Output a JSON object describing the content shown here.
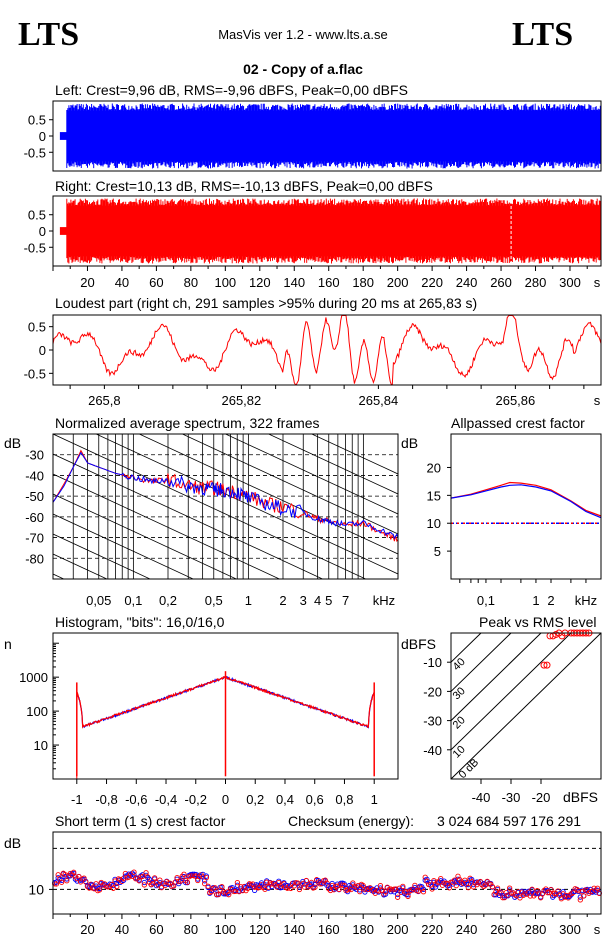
{
  "header": {
    "logo_left": "LTS",
    "logo_right": "LTS",
    "app_title": "MasVis ver 1.2 - www.lts.a.se",
    "file_title": "02 - Copy of a.flac"
  },
  "colors": {
    "left_channel": "#0000ff",
    "right_channel": "#ff0000",
    "axis": "#000000"
  },
  "chart_data": [
    {
      "id": "left",
      "type": "area",
      "title": "Left: Crest=9,96 dB, RMS=-9,96 dBFS, Peak=0,00 dBFS",
      "yticks": [
        "0.5",
        "0",
        "-0.5"
      ],
      "ylim": [
        -1,
        1
      ],
      "xlim": [
        0,
        318
      ],
      "xlabel": "s",
      "envelope": {
        "start_s": 4,
        "intro_end_s": 8,
        "intro_amp": 0.12,
        "body_amp": 1.0
      }
    },
    {
      "id": "right",
      "type": "area",
      "title": "Right: Crest=10,13 dB, RMS=-10,13 dBFS, Peak=0,00 dBFS",
      "yticks": [
        "0.5",
        "0",
        "-0.5"
      ],
      "ylim": [
        -1,
        1
      ],
      "xlim": [
        0,
        318
      ],
      "xticks": [
        "20",
        "40",
        "60",
        "80",
        "100",
        "120",
        "140",
        "160",
        "180",
        "200",
        "220",
        "240",
        "260",
        "280",
        "300"
      ],
      "xlabel": "s",
      "marker_s": 265.83,
      "envelope": {
        "start_s": 4,
        "intro_end_s": 8,
        "intro_amp": 0.12,
        "body_amp": 1.0
      }
    },
    {
      "id": "loudest",
      "type": "line",
      "title": "Loudest part (right ch, 291 samples >95% during 20 ms at 265,83 s)",
      "yticks": [
        "0.5",
        "0",
        "-0.5"
      ],
      "ylim": [
        -0.75,
        0.75
      ],
      "xlim": [
        265.7925,
        265.8725
      ],
      "xticks": [
        "265,8",
        "265,82",
        "265,84",
        "265,86"
      ],
      "xtick_values": [
        265.8,
        265.82,
        265.84,
        265.86
      ],
      "xlabel": "s"
    },
    {
      "id": "spectrum",
      "type": "line",
      "title": "Normalized average spectrum, 322 frames",
      "ylabel": "dB",
      "yticks": [
        "-30",
        "-40",
        "-50",
        "-60",
        "-70",
        "-80"
      ],
      "ytick_values": [
        -30,
        -40,
        -50,
        -60,
        -70,
        -80
      ],
      "ylim": [
        -90,
        -20
      ],
      "xscale": "log",
      "xlim_khz": [
        0.02,
        20
      ],
      "xticks": [
        "0,05",
        "0,1",
        "0,2",
        "0,5",
        "1",
        "2",
        "3",
        "4",
        "5",
        "7",
        "kHz"
      ],
      "series": [
        {
          "color": "red",
          "x_khz": [
            0.02,
            0.025,
            0.03,
            0.035,
            0.04,
            0.05,
            0.07,
            0.1,
            0.15,
            0.2,
            0.3,
            0.4,
            0.5,
            0.6,
            0.8,
            1,
            1.5,
            2,
            3,
            4,
            5,
            7,
            10,
            15,
            20
          ],
          "y": [
            -53,
            -44,
            -36,
            -28,
            -34,
            -36,
            -39,
            -41,
            -43,
            -42,
            -45,
            -46,
            -46,
            -47,
            -48,
            -50,
            -54,
            -55,
            -58,
            -61,
            -62,
            -64,
            -63,
            -68,
            -71
          ]
        },
        {
          "color": "blue",
          "x_khz": [
            0.02,
            0.025,
            0.03,
            0.035,
            0.04,
            0.05,
            0.07,
            0.1,
            0.15,
            0.2,
            0.3,
            0.4,
            0.5,
            0.6,
            0.8,
            1,
            1.5,
            2,
            3,
            4,
            5,
            7,
            10,
            15,
            20
          ],
          "y": [
            -53,
            -45,
            -36,
            -29,
            -34,
            -36,
            -39,
            -41,
            -43,
            -42,
            -45,
            -46,
            -47,
            -47,
            -48,
            -51,
            -54,
            -56,
            -58,
            -61,
            -62,
            -64,
            -63,
            -67,
            -70
          ]
        }
      ]
    },
    {
      "id": "crest",
      "type": "line",
      "title": "Allpassed crest factor",
      "ylabel": "dB",
      "yticks": [
        "20",
        "15",
        "10",
        "5"
      ],
      "ytick_values": [
        20,
        15,
        10,
        5
      ],
      "ylim": [
        0,
        26
      ],
      "xscale": "log",
      "xlim_khz": [
        0.02,
        20
      ],
      "xticks": [
        "0,1",
        "1",
        "2",
        "kHz"
      ],
      "reference_line": 10,
      "series": [
        {
          "color": "red",
          "x_khz": [
            0.02,
            0.05,
            0.1,
            0.2,
            0.3,
            0.5,
            1,
            2,
            5,
            10,
            20
          ],
          "y": [
            14.5,
            15.2,
            16.0,
            16.8,
            17.3,
            17.2,
            16.8,
            16.0,
            14.0,
            12.3,
            11.3
          ]
        },
        {
          "color": "blue",
          "x_khz": [
            0.02,
            0.05,
            0.1,
            0.2,
            0.3,
            0.5,
            1,
            2,
            5,
            10,
            20
          ],
          "y": [
            14.5,
            15.1,
            15.8,
            16.5,
            16.8,
            16.9,
            16.5,
            15.8,
            13.9,
            12.1,
            11.0
          ]
        }
      ]
    },
    {
      "id": "histogram",
      "type": "line",
      "title": "Histogram, \"bits\": 16,0/16,0",
      "ylabel": "n",
      "yscale": "log",
      "yticks": [
        "1000",
        "100",
        "10"
      ],
      "ytick_values": [
        1000,
        100,
        10
      ],
      "ylim": [
        1,
        20000
      ],
      "xlim": [
        -1.16,
        1.16
      ],
      "xticks": [
        "-1",
        "-0,8",
        "-0,6",
        "-0,4",
        "-0,2",
        "0",
        "0,2",
        "0,4",
        "0,6",
        "0,8",
        "1"
      ],
      "xtick_values": [
        -1,
        -0.8,
        -0.6,
        -0.4,
        -0.2,
        0,
        0.2,
        0.4,
        0.6,
        0.8,
        1
      ]
    },
    {
      "id": "peak_rms",
      "type": "scatter",
      "title": "Peak vs RMS level",
      "ylabel": "dBFS",
      "xlabel": "dBFS",
      "yticks": [
        "-10",
        "-20",
        "-30",
        "-40"
      ],
      "xticks": [
        "-40",
        "-30",
        "-20"
      ],
      "xlim": [
        -50,
        0
      ],
      "ylim": [
        -50,
        0
      ],
      "diagonals": [
        "40",
        "30",
        "20",
        "10",
        "0 dB"
      ],
      "diagonal_values": [
        40,
        30,
        20,
        10,
        0
      ],
      "points": [
        [
          -19,
          -11
        ],
        [
          -18,
          -11
        ],
        [
          -17,
          -1
        ],
        [
          -15,
          -0.5
        ],
        [
          -14,
          0
        ],
        [
          -12,
          0
        ],
        [
          -10,
          0
        ],
        [
          -9,
          0
        ],
        [
          -8,
          0
        ],
        [
          -7,
          0
        ],
        [
          -6,
          0
        ],
        [
          -5,
          0
        ],
        [
          -4,
          0
        ],
        [
          -13,
          -1
        ],
        [
          -16,
          -1
        ]
      ]
    },
    {
      "id": "short_term",
      "type": "scatter",
      "title": "Short term (1 s) crest factor",
      "ylabel": "dB",
      "yticks": [
        "10"
      ],
      "ytick_values": [
        10
      ],
      "ylim": [
        4,
        24
      ],
      "xlim": [
        0,
        318
      ],
      "xticks": [
        "20",
        "40",
        "60",
        "80",
        "100",
        "120",
        "140",
        "160",
        "180",
        "200",
        "220",
        "240",
        "260",
        "280",
        "300"
      ],
      "xlabel": "s",
      "reference_lines": [
        10,
        20
      ],
      "checksum_label": "Checksum (energy):",
      "checksum_value": "3 024 684 597 176 291"
    }
  ]
}
